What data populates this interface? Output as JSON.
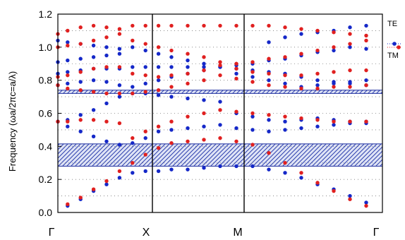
{
  "chart_data": {
    "type": "scatter",
    "title": "",
    "ylabel": "Frequency (ωa/2πc=a/λ)",
    "xlabel": "",
    "ylim": [
      0,
      1.2
    ],
    "yticks": [
      "0.0",
      "0.2",
      "0.4",
      "0.6",
      "0.8",
      "1.0",
      "1.2"
    ],
    "k_points": [
      "Γ",
      "X",
      "M",
      "Γ"
    ],
    "grid": "dotted horizontal",
    "legend_position": "right",
    "band_gaps": [
      {
        "ymin": 0.28,
        "ymax": 0.415,
        "color": "#1f2f9f"
      },
      {
        "ymin": 0.72,
        "ymax": 0.74,
        "color": "#1f2f9f"
      }
    ],
    "series": [
      {
        "name": "TE",
        "color": "#1528c8",
        "points": [
          [
            0.03,
            0.04
          ],
          [
            0.07,
            0.08
          ],
          [
            0.11,
            0.13
          ],
          [
            0.15,
            0.17
          ],
          [
            0.19,
            0.21
          ],
          [
            0.23,
            0.24
          ],
          [
            0.27,
            0.25
          ],
          [
            0.31,
            0.25
          ],
          [
            0.35,
            0.26
          ],
          [
            0.4,
            0.26
          ],
          [
            0.45,
            0.27
          ],
          [
            0.5,
            0.28
          ],
          [
            0.55,
            0.28
          ],
          [
            0.6,
            0.28
          ],
          [
            0.65,
            0.26
          ],
          [
            0.7,
            0.24
          ],
          [
            0.75,
            0.21
          ],
          [
            0.8,
            0.17
          ],
          [
            0.85,
            0.14
          ],
          [
            0.9,
            0.1
          ],
          [
            0.95,
            0.06
          ],
          [
            0.0,
            0.55
          ],
          [
            0.03,
            0.52
          ],
          [
            0.07,
            0.49
          ],
          [
            0.11,
            0.46
          ],
          [
            0.15,
            0.43
          ],
          [
            0.19,
            0.41
          ],
          [
            0.23,
            0.42
          ],
          [
            0.27,
            0.45
          ],
          [
            0.31,
            0.49
          ],
          [
            0.35,
            0.5
          ],
          [
            0.4,
            0.51
          ],
          [
            0.45,
            0.52
          ],
          [
            0.5,
            0.53
          ],
          [
            0.55,
            0.51
          ],
          [
            0.6,
            0.5
          ],
          [
            0.65,
            0.49
          ],
          [
            0.7,
            0.5
          ],
          [
            0.75,
            0.51
          ],
          [
            0.8,
            0.52
          ],
          [
            0.85,
            0.53
          ],
          [
            0.9,
            0.54
          ],
          [
            0.95,
            0.55
          ],
          [
            0.03,
            0.56
          ],
          [
            0.07,
            0.59
          ],
          [
            0.11,
            0.62
          ],
          [
            0.15,
            0.66
          ],
          [
            0.19,
            0.7
          ],
          [
            0.23,
            0.72
          ],
          [
            0.27,
            0.72
          ],
          [
            0.31,
            0.71
          ],
          [
            0.35,
            0.7
          ],
          [
            0.4,
            0.69
          ],
          [
            0.45,
            0.68
          ],
          [
            0.5,
            0.67
          ],
          [
            0.55,
            0.6
          ],
          [
            0.6,
            0.58
          ],
          [
            0.65,
            0.56
          ],
          [
            0.7,
            0.55
          ],
          [
            0.75,
            0.56
          ],
          [
            0.8,
            0.57
          ],
          [
            0.85,
            0.56
          ],
          [
            0.9,
            0.55
          ],
          [
            0.95,
            0.54
          ],
          [
            0.0,
            0.77
          ],
          [
            0.03,
            0.78
          ],
          [
            0.07,
            0.79
          ],
          [
            0.11,
            0.8
          ],
          [
            0.15,
            0.79
          ],
          [
            0.19,
            0.77
          ],
          [
            0.23,
            0.76
          ],
          [
            0.27,
            0.78
          ],
          [
            0.31,
            0.8
          ],
          [
            0.35,
            0.82
          ],
          [
            0.4,
            0.84
          ],
          [
            0.45,
            0.86
          ],
          [
            0.5,
            0.88
          ],
          [
            0.55,
            0.87
          ],
          [
            0.6,
            0.86
          ],
          [
            0.65,
            0.85
          ],
          [
            0.7,
            0.84
          ],
          [
            0.75,
            0.82
          ],
          [
            0.8,
            0.8
          ],
          [
            0.85,
            0.79
          ],
          [
            0.9,
            0.78
          ],
          [
            0.95,
            0.77
          ],
          [
            0.0,
            0.84
          ],
          [
            0.03,
            0.85
          ],
          [
            0.07,
            0.86
          ],
          [
            0.11,
            0.87
          ],
          [
            0.15,
            0.87
          ],
          [
            0.19,
            0.87
          ],
          [
            0.23,
            0.88
          ],
          [
            0.27,
            0.88
          ],
          [
            0.31,
            0.88
          ],
          [
            0.35,
            0.88
          ],
          [
            0.4,
            0.88
          ],
          [
            0.45,
            0.88
          ],
          [
            0.5,
            0.88
          ],
          [
            0.55,
            0.89
          ],
          [
            0.6,
            0.9
          ],
          [
            0.65,
            0.92
          ],
          [
            0.7,
            0.93
          ],
          [
            0.75,
            0.95
          ],
          [
            0.8,
            0.97
          ],
          [
            0.85,
            0.98
          ],
          [
            0.9,
            1.0
          ],
          [
            0.95,
            0.99
          ],
          [
            0.0,
            0.91
          ],
          [
            0.03,
            0.92
          ],
          [
            0.07,
            0.93
          ],
          [
            0.11,
            0.94
          ],
          [
            0.15,
            0.95
          ],
          [
            0.19,
            0.96
          ],
          [
            0.23,
            1.0
          ],
          [
            0.27,
            0.98
          ],
          [
            0.31,
            0.96
          ],
          [
            0.35,
            0.94
          ],
          [
            0.4,
            0.92
          ],
          [
            0.45,
            0.9
          ],
          [
            0.5,
            0.88
          ],
          [
            0.55,
            0.84
          ],
          [
            0.6,
            0.82
          ],
          [
            0.65,
            0.8
          ],
          [
            0.7,
            0.78
          ],
          [
            0.75,
            0.76
          ],
          [
            0.8,
            0.77
          ],
          [
            0.85,
            0.78
          ],
          [
            0.9,
            0.79
          ],
          [
            0.95,
            0.8
          ],
          [
            0.0,
            1.04
          ],
          [
            0.03,
            1.03
          ],
          [
            0.07,
            1.02
          ],
          [
            0.11,
            1.01
          ],
          [
            0.15,
            1.0
          ],
          [
            0.19,
            0.99
          ],
          [
            0.65,
            1.03
          ],
          [
            0.7,
            1.06
          ],
          [
            0.75,
            1.08
          ],
          [
            0.8,
            1.09
          ],
          [
            0.85,
            1.1
          ],
          [
            0.9,
            1.12
          ],
          [
            0.95,
            1.13
          ]
        ]
      },
      {
        "name": "TM",
        "color": "#e02020",
        "points": [
          [
            0.03,
            0.05
          ],
          [
            0.07,
            0.09
          ],
          [
            0.11,
            0.14
          ],
          [
            0.15,
            0.19
          ],
          [
            0.19,
            0.25
          ],
          [
            0.23,
            0.3
          ],
          [
            0.27,
            0.35
          ],
          [
            0.31,
            0.39
          ],
          [
            0.35,
            0.42
          ],
          [
            0.4,
            0.43
          ],
          [
            0.45,
            0.44
          ],
          [
            0.5,
            0.45
          ],
          [
            0.55,
            0.43
          ],
          [
            0.6,
            0.41
          ],
          [
            0.65,
            0.36
          ],
          [
            0.7,
            0.3
          ],
          [
            0.75,
            0.24
          ],
          [
            0.8,
            0.18
          ],
          [
            0.85,
            0.13
          ],
          [
            0.9,
            0.08
          ],
          [
            0.95,
            0.04
          ],
          [
            0.0,
            0.55
          ],
          [
            0.03,
            0.55
          ],
          [
            0.07,
            0.56
          ],
          [
            0.11,
            0.56
          ],
          [
            0.15,
            0.55
          ],
          [
            0.19,
            0.54
          ],
          [
            0.23,
            0.45
          ],
          [
            0.27,
            0.49
          ],
          [
            0.31,
            0.52
          ],
          [
            0.35,
            0.55
          ],
          [
            0.4,
            0.58
          ],
          [
            0.45,
            0.6
          ],
          [
            0.5,
            0.62
          ],
          [
            0.55,
            0.61
          ],
          [
            0.6,
            0.6
          ],
          [
            0.65,
            0.59
          ],
          [
            0.7,
            0.58
          ],
          [
            0.75,
            0.57
          ],
          [
            0.8,
            0.56
          ],
          [
            0.85,
            0.55
          ],
          [
            0.9,
            0.55
          ],
          [
            0.95,
            0.55
          ],
          [
            0.0,
            0.77
          ],
          [
            0.03,
            0.75
          ],
          [
            0.07,
            0.74
          ],
          [
            0.11,
            0.73
          ],
          [
            0.15,
            0.72
          ],
          [
            0.19,
            0.72
          ],
          [
            0.23,
            0.72
          ],
          [
            0.27,
            0.73
          ],
          [
            0.31,
            0.74
          ],
          [
            0.35,
            0.76
          ],
          [
            0.4,
            0.78
          ],
          [
            0.45,
            0.8
          ],
          [
            0.5,
            0.83
          ],
          [
            0.55,
            0.81
          ],
          [
            0.6,
            0.79
          ],
          [
            0.65,
            0.77
          ],
          [
            0.7,
            0.76
          ],
          [
            0.75,
            0.75
          ],
          [
            0.8,
            0.75
          ],
          [
            0.85,
            0.76
          ],
          [
            0.9,
            0.76
          ],
          [
            0.95,
            0.77
          ],
          [
            0.0,
            0.82
          ],
          [
            0.03,
            0.83
          ],
          [
            0.07,
            0.85
          ],
          [
            0.11,
            0.87
          ],
          [
            0.15,
            0.88
          ],
          [
            0.19,
            0.88
          ],
          [
            0.23,
            0.84
          ],
          [
            0.27,
            0.83
          ],
          [
            0.31,
            0.82
          ],
          [
            0.35,
            0.83
          ],
          [
            0.4,
            0.84
          ],
          [
            0.45,
            0.86
          ],
          [
            0.5,
            0.89
          ],
          [
            0.55,
            0.9
          ],
          [
            0.6,
            0.91
          ],
          [
            0.65,
            0.93
          ],
          [
            0.7,
            0.94
          ],
          [
            0.75,
            0.96
          ],
          [
            0.8,
            0.98
          ],
          [
            0.85,
            1.0
          ],
          [
            0.9,
            1.02
          ],
          [
            0.95,
            1.04
          ],
          [
            0.0,
            1.0
          ],
          [
            0.03,
            1.01
          ],
          [
            0.07,
            1.02
          ],
          [
            0.11,
            1.04
          ],
          [
            0.15,
            1.06
          ],
          [
            0.19,
            1.08
          ],
          [
            0.23,
            1.04
          ],
          [
            0.27,
            1.02
          ],
          [
            0.31,
            1.0
          ],
          [
            0.35,
            0.98
          ],
          [
            0.4,
            0.96
          ],
          [
            0.45,
            0.94
          ],
          [
            0.5,
            0.91
          ],
          [
            0.55,
            0.87
          ],
          [
            0.6,
            0.85
          ],
          [
            0.65,
            0.84
          ],
          [
            0.7,
            0.83
          ],
          [
            0.75,
            0.83
          ],
          [
            0.8,
            0.84
          ],
          [
            0.85,
            0.85
          ],
          [
            0.9,
            0.86
          ],
          [
            0.95,
            0.86
          ],
          [
            0.0,
            1.08
          ],
          [
            0.03,
            1.1
          ],
          [
            0.07,
            1.12
          ],
          [
            0.11,
            1.13
          ],
          [
            0.15,
            1.12
          ],
          [
            0.19,
            1.11
          ],
          [
            0.23,
            1.13
          ],
          [
            0.27,
            1.13
          ],
          [
            0.31,
            1.13
          ],
          [
            0.35,
            1.13
          ],
          [
            0.4,
            1.13
          ],
          [
            0.45,
            1.13
          ],
          [
            0.5,
            1.13
          ],
          [
            0.55,
            1.13
          ],
          [
            0.6,
            1.13
          ],
          [
            0.65,
            1.13
          ],
          [
            0.7,
            1.12
          ],
          [
            0.75,
            1.11
          ],
          [
            0.8,
            1.1
          ],
          [
            0.85,
            1.09
          ],
          [
            0.9,
            1.08
          ],
          [
            0.95,
            1.07
          ]
        ]
      }
    ]
  }
}
